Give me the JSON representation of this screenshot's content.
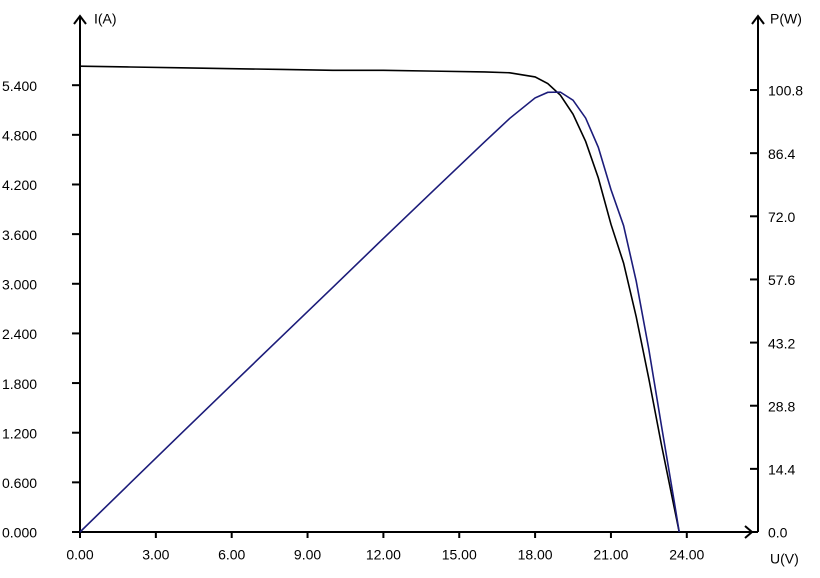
{
  "chart_data": {
    "type": "line",
    "x_label": "U(V)",
    "y_label": "I(A)",
    "y2_label": "P(W)",
    "x": [
      0,
      2,
      4,
      6,
      8,
      10,
      12,
      14,
      16,
      17,
      18,
      18.5,
      19,
      19.5,
      20,
      20.5,
      21,
      21.5,
      22,
      22.5,
      23,
      23.5,
      23.7
    ],
    "series": [
      {
        "name": "I",
        "color": "#000000",
        "values": [
          5.63,
          5.62,
          5.61,
          5.6,
          5.59,
          5.58,
          5.58,
          5.57,
          5.56,
          5.55,
          5.5,
          5.42,
          5.28,
          5.05,
          4.72,
          4.28,
          3.72,
          3.25,
          2.6,
          1.85,
          1.05,
          0.3,
          0
        ]
      },
      {
        "name": "P",
        "color": "#1c1c7a",
        "axis": "y2",
        "values": [
          0,
          11.24,
          22.44,
          33.6,
          44.72,
          55.8,
          66.96,
          77.98,
          88.96,
          94.35,
          99.0,
          100.27,
          100.32,
          98.48,
          94.4,
          87.74,
          78.12,
          69.88,
          57.2,
          41.63,
          24.15,
          7.05,
          0
        ]
      }
    ],
    "xlim": [
      0,
      26.5
    ],
    "xticks": [
      {
        "value": 0,
        "label": "0.00"
      },
      {
        "value": 3,
        "label": "3.00"
      },
      {
        "value": 6,
        "label": "6.00"
      },
      {
        "value": 9,
        "label": "9.00"
      },
      {
        "value": 12,
        "label": "12.00"
      },
      {
        "value": 15,
        "label": "15.00"
      },
      {
        "value": 18,
        "label": "18.00"
      },
      {
        "value": 21,
        "label": "21.00"
      },
      {
        "value": 24,
        "label": "24.00"
      }
    ],
    "ylim": [
      0,
      6.2
    ],
    "yticks": [
      {
        "value": 0,
        "label": "0.000"
      },
      {
        "value": 0.6,
        "label": "0.600"
      },
      {
        "value": 1.2,
        "label": "1.200"
      },
      {
        "value": 1.8,
        "label": "1.800"
      },
      {
        "value": 2.4,
        "label": "2.400"
      },
      {
        "value": 3,
        "label": "3.000"
      },
      {
        "value": 3.6,
        "label": "3.600"
      },
      {
        "value": 4.2,
        "label": "4.200"
      },
      {
        "value": 4.8,
        "label": "4.800"
      },
      {
        "value": 5.4,
        "label": "5.400"
      }
    ],
    "y2lim": [
      0,
      117
    ],
    "y2ticks": [
      {
        "value": 0,
        "label": "0.0"
      },
      14.4,
      28.8,
      43.2,
      57.6,
      {
        "value": 72,
        "label": "72.0"
      },
      86.4,
      100.8
    ],
    "grid": false
  }
}
